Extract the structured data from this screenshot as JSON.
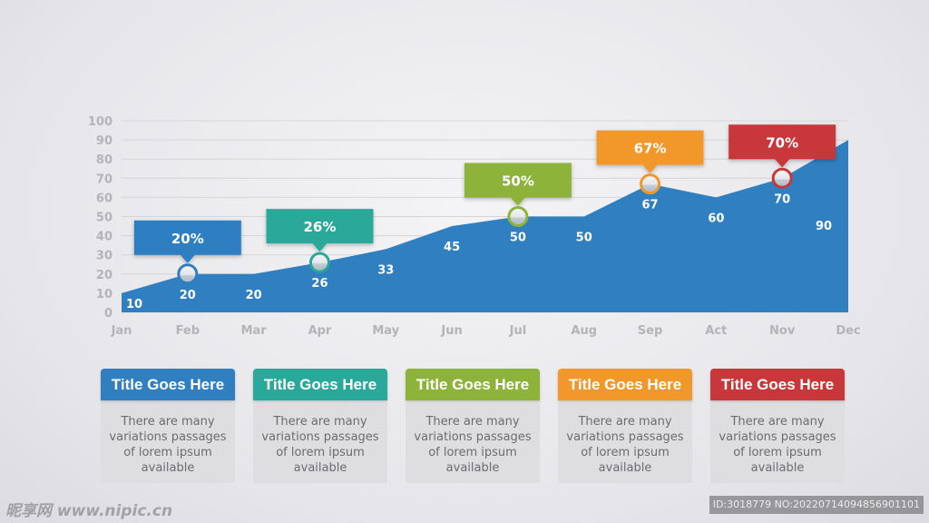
{
  "chart_data": {
    "type": "area",
    "categories": [
      "Jan",
      "Feb",
      "Mar",
      "Apr",
      "May",
      "Jun",
      "Jul",
      "Aug",
      "Sep",
      "Act",
      "Nov",
      "Dec"
    ],
    "values": [
      10,
      20,
      20,
      26,
      33,
      45,
      50,
      50,
      67,
      60,
      70,
      90
    ],
    "ylim": [
      0,
      100
    ],
    "yticks": [
      0,
      10,
      20,
      30,
      40,
      50,
      60,
      70,
      80,
      90,
      100
    ],
    "grid": true,
    "area_color": "#2f7fc1",
    "callouts": [
      {
        "category": "Feb",
        "label": "20%",
        "color": "#2f7fc1"
      },
      {
        "category": "Apr",
        "label": "26%",
        "color": "#2aa89a"
      },
      {
        "category": "Jul",
        "label": "50%",
        "color": "#8db33a"
      },
      {
        "category": "Sep",
        "label": "67%",
        "color": "#f2972a"
      },
      {
        "category": "Nov",
        "label": "70%",
        "color": "#c8373a"
      }
    ]
  },
  "cards": [
    {
      "title": "Title Goes Here",
      "text": "There are many variations passages of lorem ipsum available",
      "color": "#2f7fc1"
    },
    {
      "title": "Title Goes Here",
      "text": "There are many variations passages of lorem ipsum available",
      "color": "#2aa89a"
    },
    {
      "title": "Title Goes Here",
      "text": "There are many variations passages of lorem ipsum available",
      "color": "#8db33a"
    },
    {
      "title": "Title Goes Here",
      "text": "There are many variations passages of lorem ipsum available",
      "color": "#f2972a"
    },
    {
      "title": "Title Goes Here",
      "text": "There are many variations passages of lorem ipsum available",
      "color": "#c8373a"
    }
  ],
  "watermark": {
    "left": "昵享网 www.nipic.cn",
    "right": "ID:3018779 NO:20220714094856901101"
  }
}
